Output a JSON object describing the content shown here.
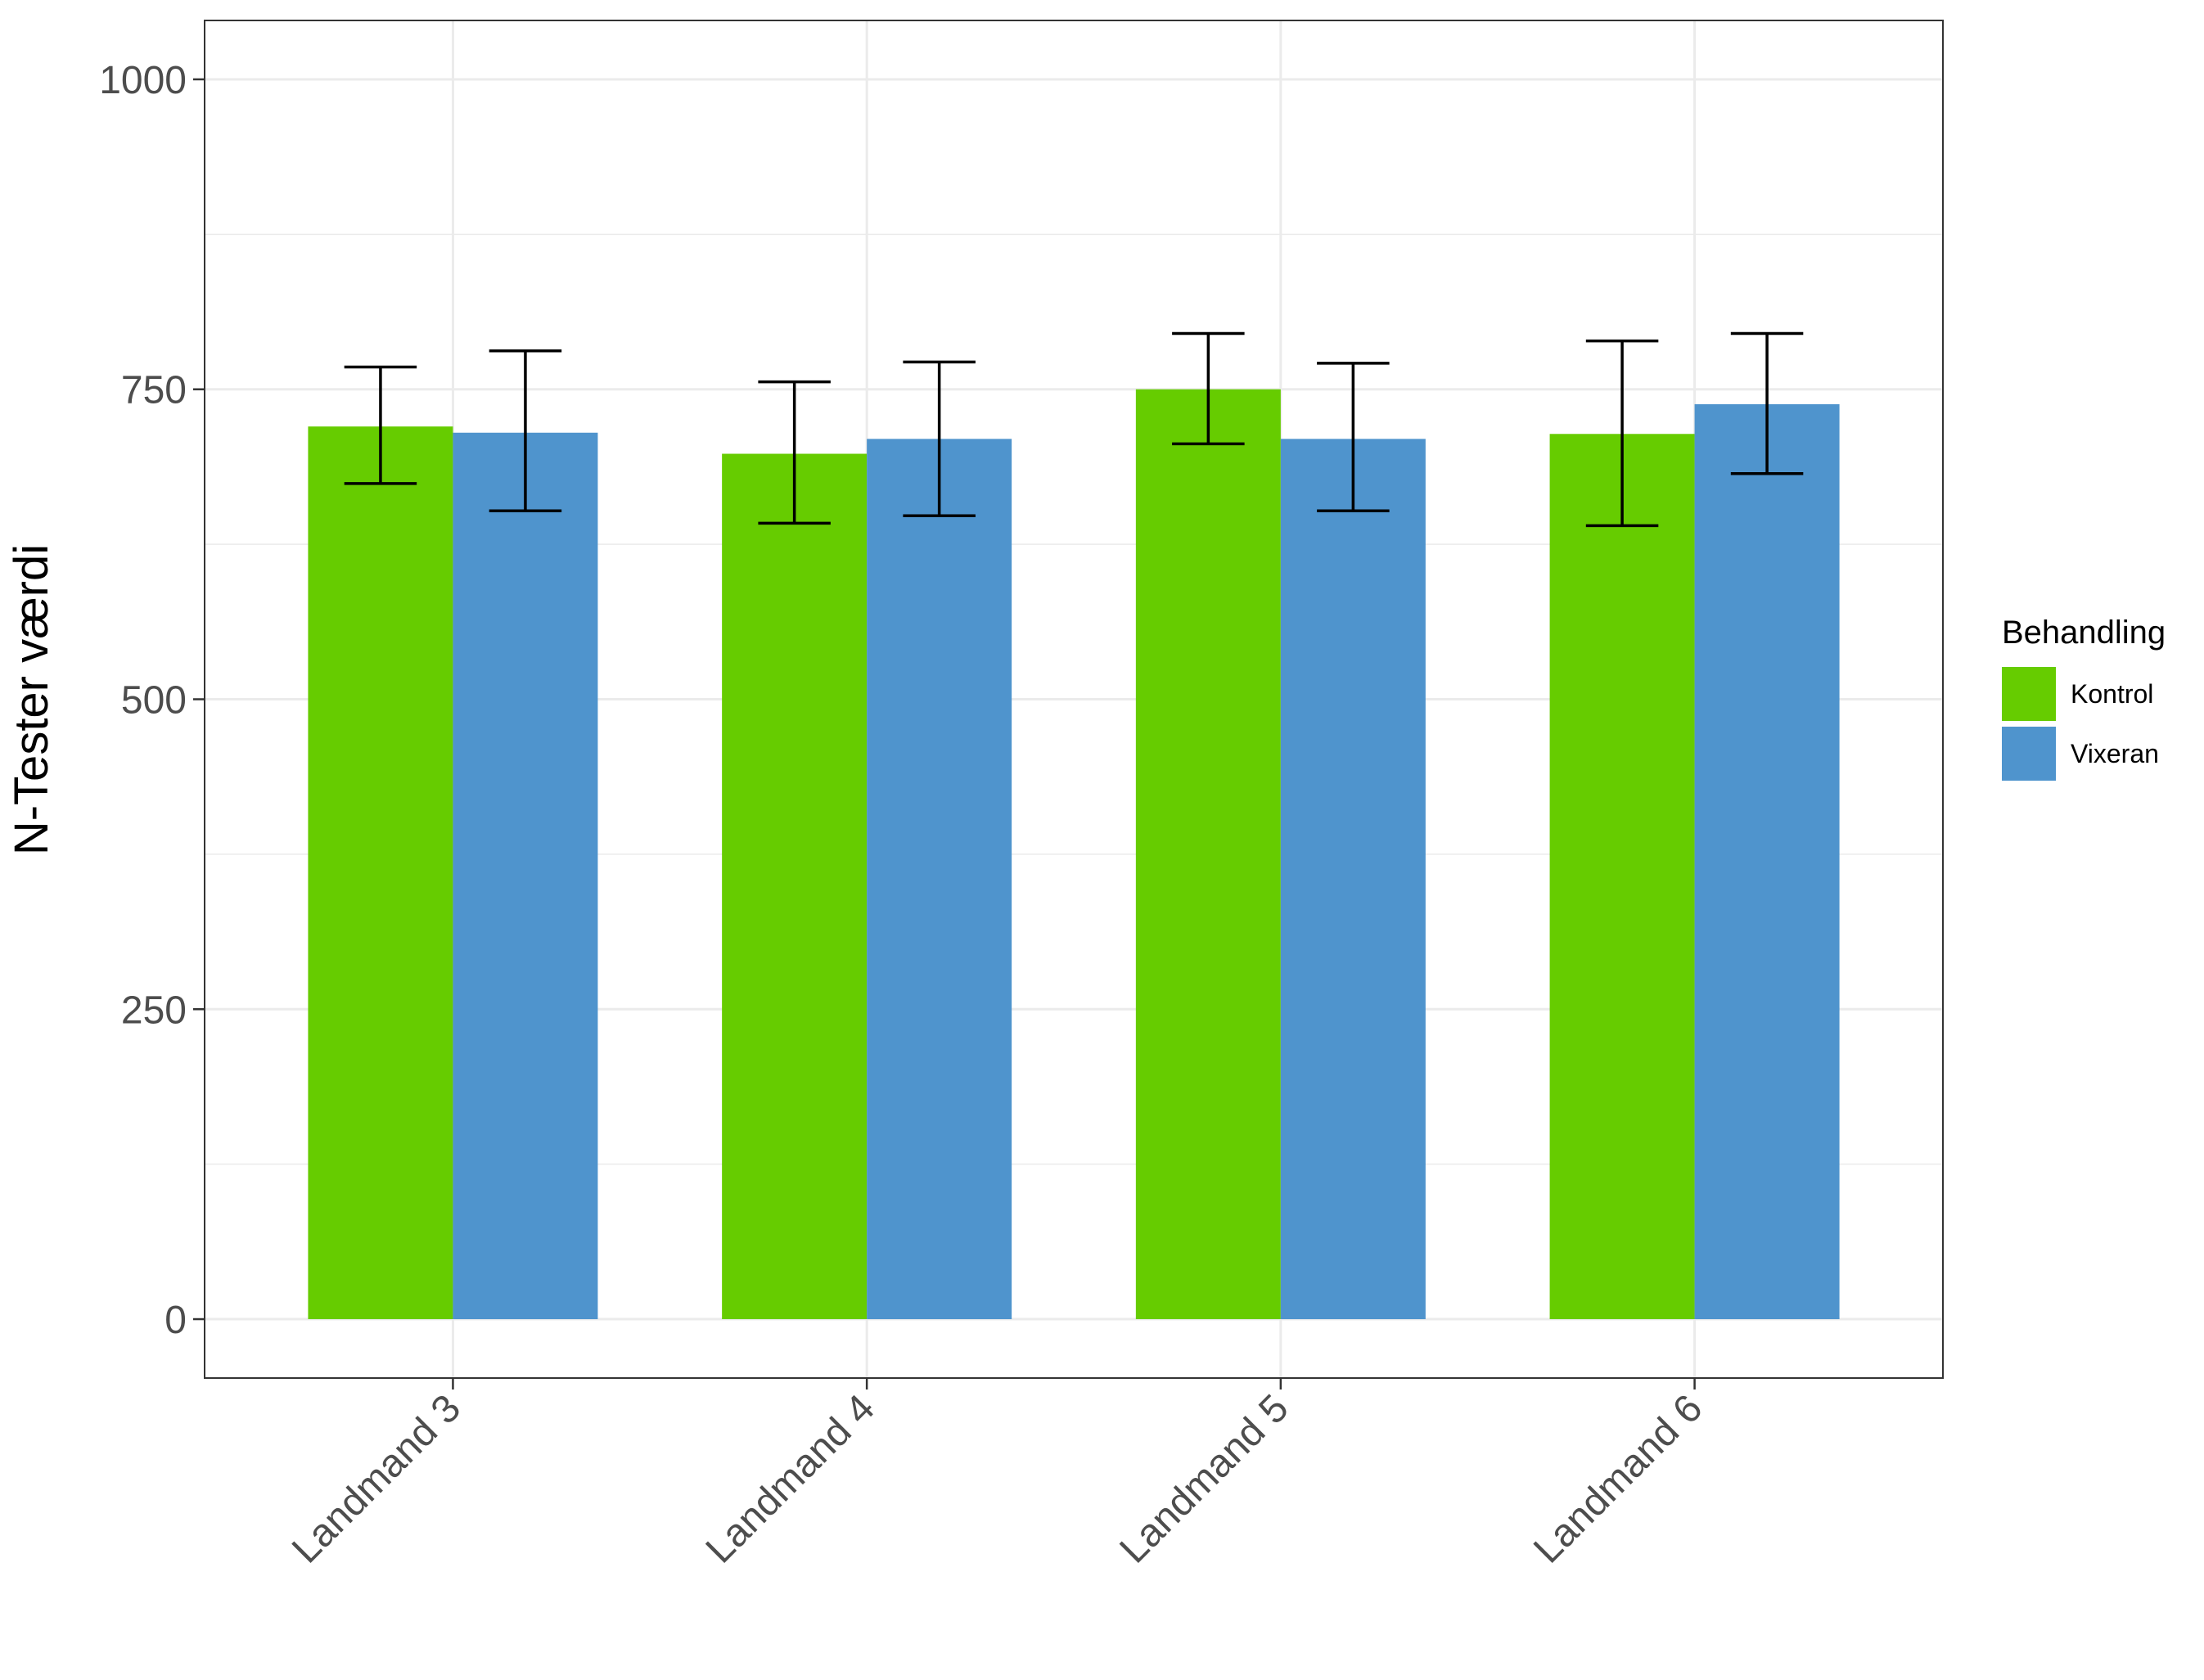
{
  "chart_data": {
    "type": "bar",
    "categories": [
      "Landmand 3",
      "Landmand 4",
      "Landmand 5",
      "Landmand 6"
    ],
    "series": [
      {
        "name": "Kontrol",
        "color": "#66cc00",
        "values": [
          720,
          698,
          750,
          714
        ],
        "error_low": [
          674,
          642,
          706,
          640
        ],
        "error_high": [
          768,
          756,
          795,
          789
        ]
      },
      {
        "name": "Vixeran",
        "color": "#4f94cd",
        "values": [
          715,
          710,
          710,
          738
        ],
        "error_low": [
          652,
          648,
          652,
          682
        ],
        "error_high": [
          781,
          772,
          771,
          795
        ]
      }
    ],
    "xlabel": "",
    "ylabel": "N-Tester værdi",
    "ylim": [
      -47.5,
      1047.5
    ],
    "yticks": [
      "0",
      "250",
      "500",
      "750",
      "1000"
    ],
    "ytick_values": [
      0,
      250,
      500,
      750,
      1000
    ],
    "legend_title": "Behandling",
    "legend_position": "right",
    "grid": true
  }
}
